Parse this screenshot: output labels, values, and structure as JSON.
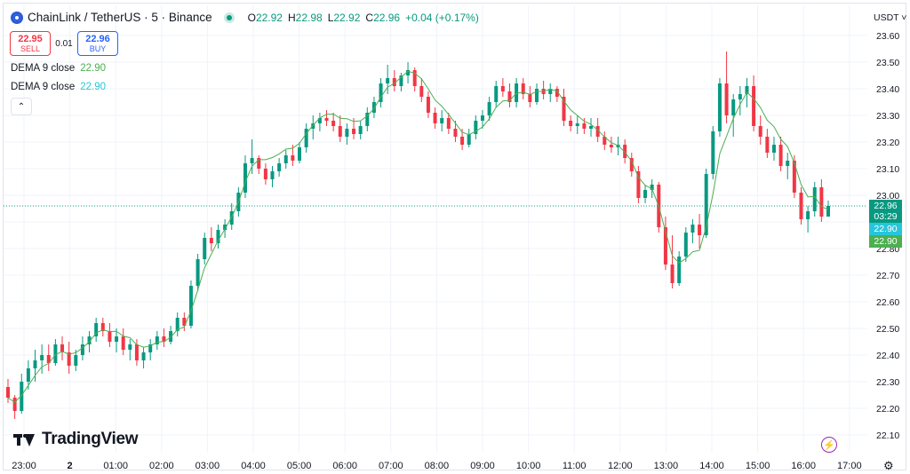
{
  "header": {
    "title": "ChainLink / TetherUS · 5 · Binance",
    "ohlc": [
      {
        "key": "O",
        "value": "22.92"
      },
      {
        "key": "H",
        "value": "22.98"
      },
      {
        "key": "L",
        "value": "22.92"
      },
      {
        "key": "C",
        "value": "22.96"
      }
    ],
    "change": "+0.04 (+0.17%)"
  },
  "trade": {
    "sell_price": "22.95",
    "sell_label": "SELL",
    "spread": "0.01",
    "buy_price": "22.96",
    "buy_label": "BUY"
  },
  "indicators": [
    {
      "label": "DEMA 9 close",
      "value": "22.90"
    },
    {
      "label": "DEMA 9 close",
      "value": "22.90"
    }
  ],
  "collapse_icon": "chevron-up-icon",
  "currency": "USDT ˅",
  "brand": "TradingView",
  "settings_icon": "gear-icon",
  "flash_icon": "lightning-icon",
  "price_tags": {
    "last_price": "22.96",
    "countdown": "03:29",
    "dema1": "22.90",
    "dema2": "22.90"
  },
  "colors": {
    "up": "#089981",
    "down": "#f23645",
    "wick_up": "#089981",
    "wick_down": "#f23645",
    "dema": "#4caf50",
    "grid": "#f0f3fa"
  },
  "chart_data": {
    "type": "candlestick",
    "ylim": [
      22.1,
      23.6
    ],
    "y_ticks": [
      "23.60",
      "23.50",
      "23.40",
      "23.30",
      "23.20",
      "23.10",
      "23.00",
      "22.90",
      "22.80",
      "22.70",
      "22.60",
      "22.50",
      "22.40",
      "22.30",
      "22.20",
      "22.10"
    ],
    "x_ticks": [
      "23:00",
      "2",
      "01:00",
      "02:00",
      "03:00",
      "04:00",
      "05:00",
      "06:00",
      "07:00",
      "08:00",
      "09:00",
      "10:00",
      "11:00",
      "12:00",
      "13:00",
      "14:00",
      "15:00",
      "16:00",
      "17:00"
    ],
    "last_price": 22.96,
    "candles": [
      [
        22.28,
        22.31,
        22.22,
        22.24
      ],
      [
        22.24,
        22.25,
        22.16,
        22.19
      ],
      [
        22.19,
        22.33,
        22.18,
        22.3
      ],
      [
        22.3,
        22.38,
        22.27,
        22.35
      ],
      [
        22.35,
        22.42,
        22.3,
        22.38
      ],
      [
        22.38,
        22.44,
        22.33,
        22.4
      ],
      [
        22.4,
        22.44,
        22.34,
        22.37
      ],
      [
        22.37,
        22.46,
        22.36,
        22.44
      ],
      [
        22.44,
        22.47,
        22.38,
        22.41
      ],
      [
        22.41,
        22.45,
        22.33,
        22.36
      ],
      [
        22.36,
        22.42,
        22.34,
        22.4
      ],
      [
        22.4,
        22.47,
        22.38,
        22.44
      ],
      [
        22.44,
        22.49,
        22.41,
        22.47
      ],
      [
        22.47,
        22.54,
        22.45,
        22.52
      ],
      [
        22.52,
        22.54,
        22.47,
        22.49
      ],
      [
        22.49,
        22.52,
        22.43,
        22.45
      ],
      [
        22.45,
        22.5,
        22.41,
        22.47
      ],
      [
        22.47,
        22.5,
        22.4,
        22.42
      ],
      [
        22.42,
        22.46,
        22.38,
        22.44
      ],
      [
        22.44,
        22.46,
        22.36,
        22.38
      ],
      [
        22.38,
        22.43,
        22.35,
        22.41
      ],
      [
        22.41,
        22.46,
        22.38,
        22.44
      ],
      [
        22.44,
        22.49,
        22.42,
        22.47
      ],
      [
        22.47,
        22.5,
        22.43,
        22.45
      ],
      [
        22.45,
        22.51,
        22.44,
        22.49
      ],
      [
        22.49,
        22.56,
        22.47,
        22.54
      ],
      [
        22.54,
        22.56,
        22.49,
        22.51
      ],
      [
        22.51,
        22.68,
        22.5,
        22.66
      ],
      [
        22.66,
        22.78,
        22.64,
        22.76
      ],
      [
        22.76,
        22.86,
        22.74,
        22.84
      ],
      [
        22.84,
        22.88,
        22.79,
        22.82
      ],
      [
        22.82,
        22.89,
        22.8,
        22.87
      ],
      [
        22.87,
        22.91,
        22.84,
        22.89
      ],
      [
        22.89,
        22.97,
        22.87,
        22.94
      ],
      [
        22.94,
        23.03,
        22.92,
        23.01
      ],
      [
        23.01,
        23.15,
        22.99,
        23.12
      ],
      [
        23.12,
        23.21,
        23.08,
        23.14
      ],
      [
        23.14,
        23.15,
        23.08,
        23.1
      ],
      [
        23.1,
        23.12,
        23.04,
        23.06
      ],
      [
        23.06,
        23.11,
        23.03,
        23.09
      ],
      [
        23.09,
        23.14,
        23.07,
        23.12
      ],
      [
        23.12,
        23.17,
        23.1,
        23.15
      ],
      [
        23.15,
        23.19,
        23.11,
        23.13
      ],
      [
        23.13,
        23.2,
        23.12,
        23.18
      ],
      [
        23.18,
        23.27,
        23.16,
        23.25
      ],
      [
        23.25,
        23.3,
        23.21,
        23.27
      ],
      [
        23.27,
        23.31,
        23.24,
        23.29
      ],
      [
        23.29,
        23.32,
        23.26,
        23.28
      ],
      [
        23.28,
        23.31,
        23.24,
        23.26
      ],
      [
        23.26,
        23.3,
        23.2,
        23.22
      ],
      [
        23.22,
        23.27,
        23.19,
        23.25
      ],
      [
        23.25,
        23.29,
        23.21,
        23.23
      ],
      [
        23.23,
        23.28,
        23.21,
        23.26
      ],
      [
        23.26,
        23.33,
        23.24,
        23.31
      ],
      [
        23.31,
        23.37,
        23.29,
        23.35
      ],
      [
        23.35,
        23.44,
        23.33,
        23.42
      ],
      [
        23.42,
        23.49,
        23.38,
        23.44
      ],
      [
        23.44,
        23.47,
        23.39,
        23.41
      ],
      [
        23.41,
        23.46,
        23.39,
        23.45
      ],
      [
        23.45,
        23.5,
        23.42,
        23.47
      ],
      [
        23.47,
        23.48,
        23.39,
        23.41
      ],
      [
        23.41,
        23.44,
        23.35,
        23.37
      ],
      [
        23.37,
        23.39,
        23.29,
        23.31
      ],
      [
        23.31,
        23.33,
        23.25,
        23.27
      ],
      [
        23.27,
        23.32,
        23.24,
        23.29
      ],
      [
        23.29,
        23.31,
        23.23,
        23.25
      ],
      [
        23.25,
        23.28,
        23.2,
        23.22
      ],
      [
        23.22,
        23.25,
        23.17,
        23.19
      ],
      [
        23.19,
        23.25,
        23.18,
        23.23
      ],
      [
        23.23,
        23.3,
        23.21,
        23.28
      ],
      [
        23.28,
        23.32,
        23.25,
        23.3
      ],
      [
        23.3,
        23.37,
        23.28,
        23.35
      ],
      [
        23.35,
        23.43,
        23.33,
        23.41
      ],
      [
        23.41,
        23.44,
        23.37,
        23.39
      ],
      [
        23.39,
        23.42,
        23.33,
        23.35
      ],
      [
        23.35,
        23.44,
        23.33,
        23.42
      ],
      [
        23.42,
        23.44,
        23.36,
        23.38
      ],
      [
        23.38,
        23.41,
        23.33,
        23.35
      ],
      [
        23.35,
        23.42,
        23.34,
        23.4
      ],
      [
        23.4,
        23.43,
        23.36,
        23.38
      ],
      [
        23.38,
        23.42,
        23.35,
        23.4
      ],
      [
        23.4,
        23.41,
        23.35,
        23.37
      ],
      [
        23.37,
        23.4,
        23.26,
        23.28
      ],
      [
        23.28,
        23.3,
        23.24,
        23.26
      ],
      [
        23.26,
        23.3,
        23.23,
        23.27
      ],
      [
        23.27,
        23.29,
        23.23,
        23.25
      ],
      [
        23.25,
        23.29,
        23.22,
        23.26
      ],
      [
        23.26,
        23.29,
        23.2,
        23.22
      ],
      [
        23.22,
        23.24,
        23.17,
        23.19
      ],
      [
        23.19,
        23.22,
        23.16,
        23.18
      ],
      [
        23.18,
        23.22,
        23.15,
        23.19
      ],
      [
        23.19,
        23.21,
        23.12,
        23.14
      ],
      [
        23.14,
        23.16,
        23.07,
        23.09
      ],
      [
        23.09,
        23.11,
        22.97,
        22.99
      ],
      [
        22.99,
        23.04,
        22.97,
        23.02
      ],
      [
        23.02,
        23.06,
        22.99,
        23.04
      ],
      [
        23.04,
        23.05,
        22.86,
        22.88
      ],
      [
        22.88,
        22.92,
        22.72,
        22.74
      ],
      [
        22.74,
        22.85,
        22.65,
        22.67
      ],
      [
        22.67,
        22.79,
        22.66,
        22.77
      ],
      [
        22.77,
        22.88,
        22.75,
        22.86
      ],
      [
        22.86,
        22.91,
        22.82,
        22.89
      ],
      [
        22.89,
        22.93,
        22.8,
        22.85
      ],
      [
        22.85,
        23.1,
        22.84,
        23.08
      ],
      [
        23.08,
        23.26,
        23.06,
        23.24
      ],
      [
        23.24,
        23.44,
        23.22,
        23.42
      ],
      [
        23.42,
        23.54,
        23.27,
        23.3
      ],
      [
        23.3,
        23.38,
        23.22,
        23.36
      ],
      [
        23.36,
        23.41,
        23.3,
        23.38
      ],
      [
        23.38,
        23.44,
        23.33,
        23.41
      ],
      [
        23.41,
        23.45,
        23.24,
        23.26
      ],
      [
        23.26,
        23.3,
        23.19,
        23.22
      ],
      [
        23.22,
        23.25,
        23.14,
        23.16
      ],
      [
        23.16,
        23.22,
        23.13,
        23.19
      ],
      [
        23.19,
        23.22,
        23.09,
        23.11
      ],
      [
        23.11,
        23.16,
        23.06,
        23.13
      ],
      [
        23.13,
        23.15,
        22.99,
        23.01
      ],
      [
        23.01,
        23.03,
        22.89,
        22.91
      ],
      [
        22.91,
        22.96,
        22.86,
        22.94
      ],
      [
        22.94,
        23.05,
        22.92,
        23.03
      ],
      [
        23.03,
        23.06,
        22.9,
        22.92
      ],
      [
        22.92,
        22.98,
        22.92,
        22.96
      ]
    ]
  }
}
